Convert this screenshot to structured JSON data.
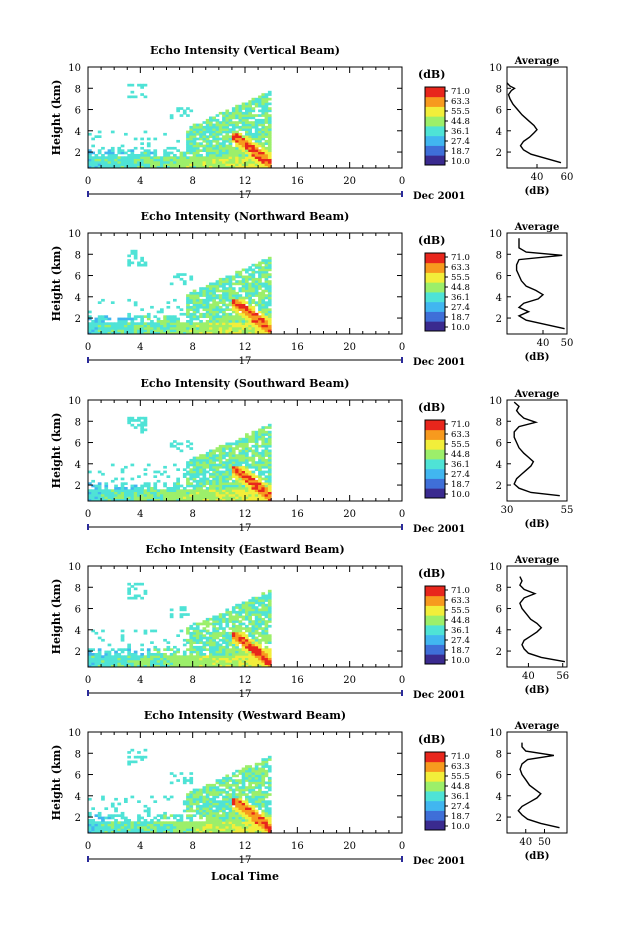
{
  "chart_data": {
    "type": "heatmap",
    "date_label": "Dec 2001",
    "day_label": "17",
    "xlabel": "Local Time",
    "x_ticks": [
      "0",
      "4",
      "8",
      "12",
      "16",
      "20",
      "0"
    ],
    "xlim": [
      0,
      24
    ],
    "ylabel": "Height (km)",
    "y_ticks": [
      "2",
      "4",
      "6",
      "8",
      "10"
    ],
    "ylim": [
      0.5,
      10
    ],
    "colorbar": {
      "unit": "(dB)",
      "ticks": [
        "71.0",
        "63.3",
        "55.5",
        "44.8",
        "36.1",
        "27.4",
        "18.7",
        "10.0"
      ],
      "range": [
        10,
        71
      ],
      "colors": [
        "#3a2a8f",
        "#3f6fd8",
        "#41b6f0",
        "#4fe3d6",
        "#9cef6a",
        "#f2ee3a",
        "#f79a1e",
        "#e8261c"
      ]
    },
    "average_title": "Average",
    "average_xlabel": "(dB)",
    "panels": [
      {
        "title": "Echo Intensity (Vertical Beam)",
        "avg_xlim": [
          20,
          60
        ],
        "avg_xticks": [
          {
            "v": 40,
            "label": "40"
          },
          {
            "v": 60,
            "label": "60"
          }
        ],
        "avg_profile": [
          [
            1.0,
            56
          ],
          [
            1.4,
            46
          ],
          [
            1.8,
            36
          ],
          [
            2.2,
            31
          ],
          [
            2.6,
            29
          ],
          [
            3.0,
            31
          ],
          [
            3.4,
            35
          ],
          [
            3.8,
            38
          ],
          [
            4.1,
            40
          ],
          [
            4.5,
            38
          ],
          [
            5.0,
            34
          ],
          [
            5.5,
            30
          ],
          [
            6.0,
            27
          ],
          [
            6.5,
            24
          ],
          [
            7.0,
            22
          ],
          [
            7.4,
            21
          ],
          [
            7.8,
            23
          ],
          [
            8.0,
            25
          ],
          [
            8.2,
            22
          ],
          [
            8.5,
            20
          ]
        ]
      },
      {
        "title": "Echo Intensity (Northward Beam)",
        "avg_xlim": [
          25,
          50
        ],
        "avg_xticks": [
          {
            "v": 40,
            "label": "40"
          },
          {
            "v": 50,
            "label": "50"
          }
        ],
        "avg_profile": [
          [
            1.0,
            49
          ],
          [
            1.4,
            41
          ],
          [
            1.8,
            33
          ],
          [
            2.2,
            30
          ],
          [
            2.6,
            34
          ],
          [
            3.0,
            30
          ],
          [
            3.4,
            32
          ],
          [
            3.8,
            38
          ],
          [
            4.2,
            40
          ],
          [
            4.6,
            37
          ],
          [
            5.0,
            33
          ],
          [
            5.5,
            31
          ],
          [
            6.0,
            30
          ],
          [
            6.5,
            29
          ],
          [
            7.0,
            29
          ],
          [
            7.5,
            30
          ],
          [
            7.9,
            48
          ],
          [
            8.2,
            33
          ],
          [
            8.6,
            30
          ],
          [
            9.0,
            30
          ],
          [
            9.5,
            30
          ]
        ]
      },
      {
        "title": "Echo Intensity (Southward Beam)",
        "avg_xlim": [
          30,
          55
        ],
        "avg_xticks": [
          {
            "v": 30,
            "label": "30"
          },
          {
            "v": 55,
            "label": "55"
          }
        ],
        "avg_profile": [
          [
            1.0,
            52
          ],
          [
            1.3,
            40
          ],
          [
            1.7,
            35
          ],
          [
            2.1,
            33
          ],
          [
            2.6,
            34
          ],
          [
            3.0,
            36
          ],
          [
            3.4,
            38
          ],
          [
            3.8,
            40
          ],
          [
            4.2,
            41
          ],
          [
            4.6,
            39
          ],
          [
            5.0,
            37
          ],
          [
            5.5,
            35
          ],
          [
            6.0,
            34
          ],
          [
            6.5,
            33
          ],
          [
            7.0,
            33
          ],
          [
            7.5,
            35
          ],
          [
            7.9,
            42
          ],
          [
            8.3,
            37
          ],
          [
            8.7,
            35
          ],
          [
            9.0,
            34
          ],
          [
            9.4,
            35
          ],
          [
            9.8,
            33
          ]
        ]
      },
      {
        "title": "Echo Intensity (Eastward Beam)",
        "avg_xlim": [
          30,
          58
        ],
        "avg_xticks": [
          {
            "v": 40,
            "label": "40"
          },
          {
            "v": 56,
            "label": "56"
          }
        ],
        "avg_profile": [
          [
            1.0,
            57
          ],
          [
            1.4,
            46
          ],
          [
            1.8,
            40
          ],
          [
            2.2,
            38
          ],
          [
            2.6,
            37
          ],
          [
            3.0,
            38
          ],
          [
            3.4,
            41
          ],
          [
            3.8,
            44
          ],
          [
            4.2,
            46
          ],
          [
            4.6,
            44
          ],
          [
            5.0,
            41
          ],
          [
            5.5,
            39
          ],
          [
            6.0,
            37
          ],
          [
            6.5,
            36
          ],
          [
            7.0,
            38
          ],
          [
            7.4,
            43
          ],
          [
            7.8,
            38
          ],
          [
            8.2,
            36
          ],
          [
            8.6,
            37
          ],
          [
            9.0,
            36
          ]
        ]
      },
      {
        "title": "Echo Intensity (Westward Beam)",
        "avg_xlim": [
          30,
          62
        ],
        "avg_xticks": [
          {
            "v": 40,
            "label": "40"
          },
          {
            "v": 50,
            "label": "50"
          }
        ],
        "avg_profile": [
          [
            1.0,
            58
          ],
          [
            1.4,
            48
          ],
          [
            1.8,
            41
          ],
          [
            2.2,
            38
          ],
          [
            2.6,
            36
          ],
          [
            3.0,
            38
          ],
          [
            3.4,
            42
          ],
          [
            3.8,
            46
          ],
          [
            4.2,
            48
          ],
          [
            4.6,
            45
          ],
          [
            5.0,
            42
          ],
          [
            5.5,
            40
          ],
          [
            6.0,
            38
          ],
          [
            6.5,
            37
          ],
          [
            7.0,
            38
          ],
          [
            7.4,
            41
          ],
          [
            7.8,
            55
          ],
          [
            8.2,
            40
          ],
          [
            8.6,
            38
          ],
          [
            9.0,
            38
          ]
        ]
      }
    ]
  }
}
